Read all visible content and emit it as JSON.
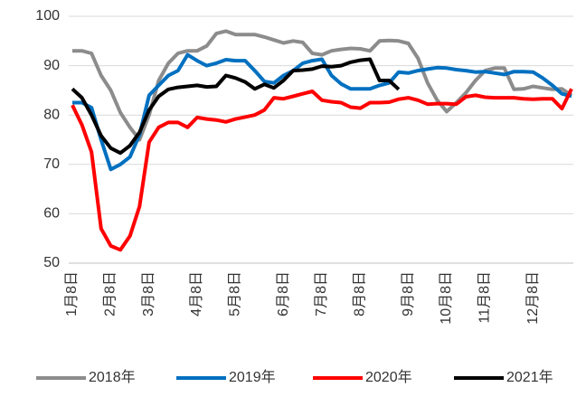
{
  "chart_data": {
    "type": "line",
    "categories": [
      "1月8日",
      null,
      null,
      null,
      "2月8日",
      null,
      null,
      null,
      "3月8日",
      null,
      null,
      null,
      null,
      "4月8日",
      null,
      null,
      null,
      "5月8日",
      null,
      null,
      null,
      null,
      "6月8日",
      null,
      null,
      null,
      "7月8日",
      null,
      null,
      null,
      "8月8日",
      null,
      null,
      null,
      null,
      "9月8日",
      null,
      null,
      null,
      "10月8日",
      null,
      null,
      null,
      "11月8日",
      null,
      null,
      null,
      null,
      "12月8日",
      null,
      null,
      null,
      null
    ],
    "series": [
      {
        "name": "2018年",
        "color": "#8c8c8c",
        "values": [
          93,
          93,
          92.5,
          88,
          85,
          80.5,
          77.5,
          75,
          80,
          87,
          90.5,
          92.5,
          93,
          93,
          94,
          96.5,
          97,
          96.3,
          96.3,
          96.3,
          95.8,
          95.2,
          94.6,
          95,
          94.7,
          92.5,
          92.2,
          93,
          93.3,
          93.5,
          93.4,
          93,
          95,
          95.1,
          95,
          94.5,
          91.5,
          86.5,
          83,
          80.7,
          82.5,
          84.5,
          87,
          89,
          89.5,
          89.5,
          85.2,
          85.3,
          85.8,
          85.5,
          85.2,
          85.3,
          84
        ]
      },
      {
        "name": "2019年",
        "color": "#0070c0",
        "values": [
          82.5,
          82.5,
          81.5,
          75,
          69,
          70,
          71.5,
          76,
          84,
          86,
          88,
          89,
          92.2,
          91,
          90,
          90.5,
          91.2,
          91,
          91,
          89,
          86.8,
          86.5,
          88,
          89,
          90.5,
          91,
          91.3,
          88,
          86.3,
          85.3,
          85.3,
          85.3,
          86,
          86.5,
          88.7,
          88.5,
          89,
          89.3,
          89.6,
          89.5,
          89.2,
          89,
          88.7,
          88.8,
          88.5,
          88.2,
          88.8,
          88.8,
          88.7,
          87.5,
          86,
          84.3,
          83.8
        ]
      },
      {
        "name": "2020年",
        "color": "#ff0000",
        "values": [
          82,
          78,
          72.5,
          57,
          53.5,
          52.7,
          55.5,
          61.5,
          74.5,
          77.5,
          78.5,
          78.5,
          77.5,
          79.5,
          79.2,
          79,
          78.6,
          79.2,
          79.6,
          80,
          81,
          83.5,
          83.3,
          83.8,
          84.3,
          84.8,
          83,
          82.7,
          82.5,
          81.6,
          81.4,
          82.5,
          82.5,
          82.6,
          83.2,
          83.5,
          83,
          82.2,
          82.3,
          82.3,
          82.2,
          83.7,
          84,
          83.6,
          83.5,
          83.5,
          83.5,
          83.3,
          83.2,
          83.3,
          83.3,
          81.3,
          85.3
        ]
      },
      {
        "name": "2021年",
        "color": "#000000",
        "values": [
          85.3,
          83.5,
          80,
          75.8,
          73.3,
          72.3,
          73.8,
          76.5,
          81,
          83.8,
          85.2,
          85.6,
          85.8,
          86,
          85.7,
          85.8,
          88,
          87.5,
          86.7,
          85.3,
          86.2,
          85.5,
          87,
          89,
          89.1,
          89.3,
          89.9,
          89.8,
          90,
          90.7,
          91.1,
          91.3,
          87,
          87,
          85.2,
          null,
          null,
          null,
          null,
          null,
          null,
          null,
          null,
          null,
          null,
          null,
          null,
          null,
          null,
          null,
          null,
          null,
          null
        ]
      }
    ],
    "ylim": [
      50,
      100
    ],
    "yticks": [
      50,
      60,
      70,
      80,
      90,
      100
    ],
    "grid": true
  }
}
